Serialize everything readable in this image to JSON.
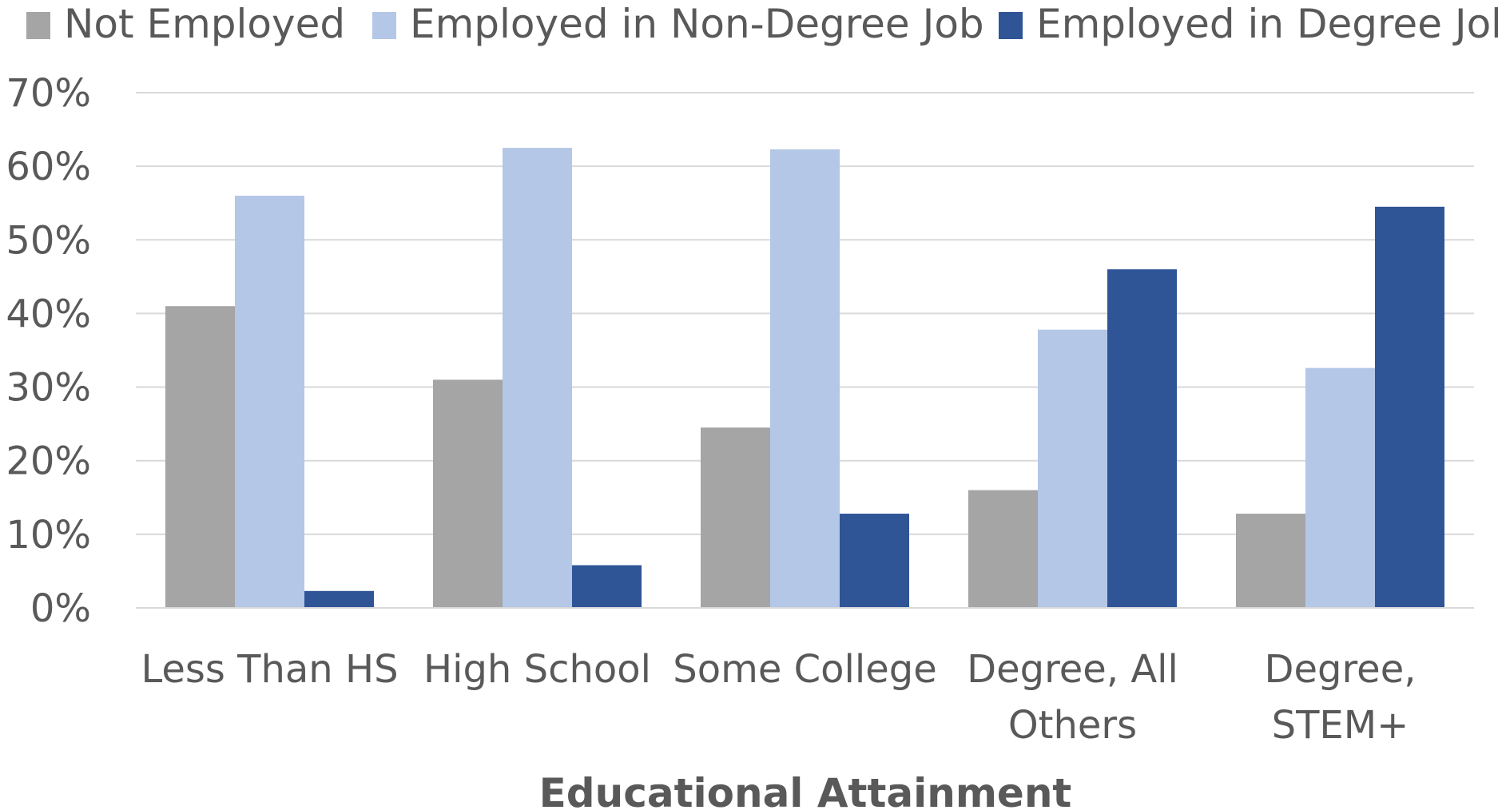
{
  "chart_data": {
    "type": "bar",
    "title": "",
    "xlabel": "Educational Attainment",
    "ylabel": "",
    "categories": [
      [
        "Less Than HS"
      ],
      [
        "High School"
      ],
      [
        "Some College"
      ],
      [
        "Degree, All",
        "Others"
      ],
      [
        "Degree,",
        "STEM+"
      ]
    ],
    "series": [
      {
        "name": "Not Employed",
        "color": "#a5a5a5",
        "values": [
          41,
          31,
          24.5,
          16,
          12.8
        ]
      },
      {
        "name": "Employed in Non-Degree Job",
        "color": "#b4c7e7",
        "values": [
          56,
          62.5,
          62.3,
          37.8,
          32.6
        ]
      },
      {
        "name": "Employed in Degree Job",
        "color": "#2f5597",
        "values": [
          2.3,
          5.8,
          12.8,
          46,
          54.5
        ]
      }
    ],
    "ylim": [
      0,
      70
    ],
    "yticks": [
      0,
      10,
      20,
      30,
      40,
      50,
      60,
      70
    ],
    "tick_format": "percent",
    "grid": true,
    "grid_color": "#d9d9d9",
    "legend": "top"
  }
}
